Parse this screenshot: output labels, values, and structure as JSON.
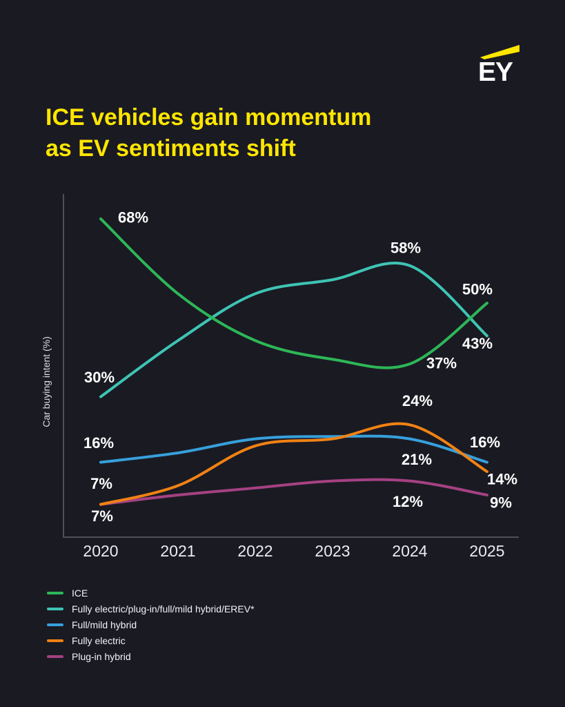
{
  "page": {
    "background_color": "#1a1a23"
  },
  "logo": {
    "text": "EY",
    "beam_color": "#ffe600"
  },
  "title": {
    "line1": "ICE vehicles gain momentum",
    "line2": "as EV sentiments shift",
    "color": "#ffe600"
  },
  "chart_data": {
    "type": "line",
    "title": "ICE vehicles gain momentum as EV sentiments shift",
    "xlabel": "",
    "ylabel": "Car buying intent (%)",
    "categories": [
      "2020",
      "2021",
      "2022",
      "2023",
      "2024",
      "2025"
    ],
    "ylim": [
      0,
      73
    ],
    "grid": false,
    "legend_position": "bottom-left",
    "series": [
      {
        "name": "ICE",
        "color": "#2db757",
        "values": [
          68,
          52,
          42,
          38,
          37,
          50
        ],
        "labels": [
          "68%",
          null,
          null,
          null,
          "37%",
          "50%"
        ],
        "label_offsets": [
          [
            47,
            -2
          ],
          null,
          null,
          null,
          [
            46,
            -1
          ],
          [
            -14,
            -20
          ]
        ]
      },
      {
        "name": "Fully electric/plug-in/full/mild hybrid/EREV*",
        "color": "#3ec4b4",
        "values": [
          30,
          42,
          52,
          55,
          58,
          43
        ],
        "labels": [
          "30%",
          null,
          null,
          null,
          "58%",
          "43%"
        ],
        "label_offsets": [
          [
            -2,
            -28
          ],
          null,
          null,
          null,
          [
            -6,
            -26
          ],
          [
            -14,
            11
          ]
        ]
      },
      {
        "name": "Full/mild hybrid",
        "color": "#37a0dc",
        "values": [
          16,
          18,
          21,
          21.5,
          21,
          16
        ],
        "labels": [
          "16%",
          null,
          null,
          null,
          "21%",
          "16%"
        ],
        "label_offsets": [
          [
            -3,
            -28
          ],
          null,
          null,
          null,
          [
            10,
            30
          ],
          [
            -3,
            -29
          ]
        ]
      },
      {
        "name": "Fully electric",
        "color": "#f08214",
        "values": [
          7,
          11,
          19.5,
          21,
          24,
          14
        ],
        "labels": [
          "7%",
          null,
          null,
          null,
          "24%",
          "14%"
        ],
        "label_offsets": [
          [
            1,
            -30
          ],
          null,
          null,
          null,
          [
            11,
            -35
          ],
          [
            22,
            11
          ]
        ]
      },
      {
        "name": "Plug-in hybrid",
        "color": "#a54182",
        "values": [
          7,
          9,
          10.5,
          12,
          12,
          9
        ],
        "labels": [
          "7%",
          null,
          null,
          null,
          "12%",
          "9%"
        ],
        "label_offsets": [
          [
            2,
            17
          ],
          null,
          null,
          null,
          [
            -3,
            30
          ],
          [
            20,
            11
          ]
        ]
      }
    ]
  }
}
